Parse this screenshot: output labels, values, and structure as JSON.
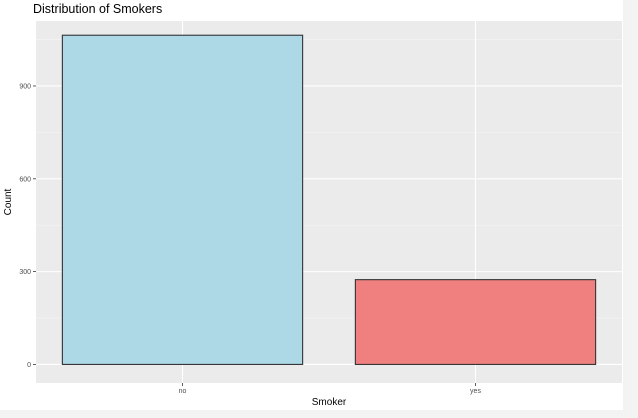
{
  "chart_data": {
    "type": "bar",
    "title": "Distribution of Smokers",
    "xlabel": "Smoker",
    "ylabel": "Count",
    "categories": [
      "no",
      "yes"
    ],
    "values": [
      1064,
      274
    ],
    "ylim": [
      -60,
      1110
    ],
    "yticks": [
      0,
      300,
      600,
      900
    ],
    "yticks_minor": [
      150,
      450,
      750,
      1050
    ],
    "bar_colors": [
      "#add8e6",
      "#f08080"
    ],
    "bar_outline": "#333333",
    "panel_background": "#ebebeb",
    "grid": true,
    "legend": "none"
  }
}
